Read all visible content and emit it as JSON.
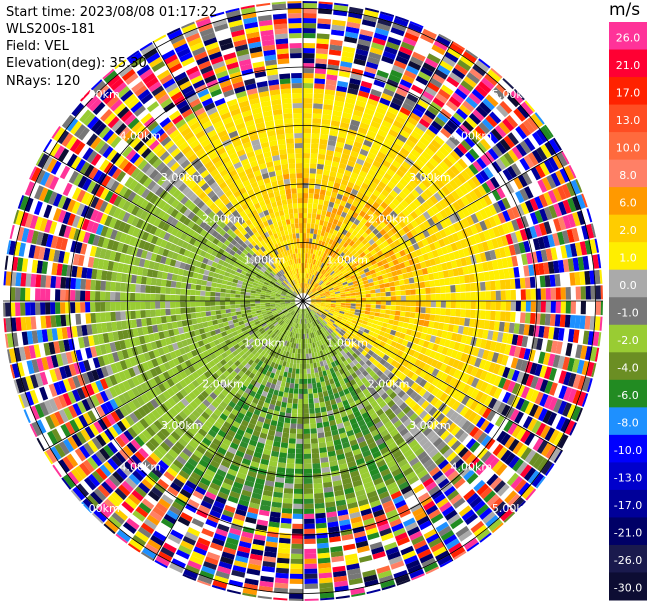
{
  "header": {
    "start_time": "Start time: 2023/08/08 01:17:22",
    "instrument": "WLS200s-181",
    "field": "Field: VEL",
    "elevation": "Elevation(deg): 35.30",
    "nrays": "NRays: 120"
  },
  "chart_data": {
    "type": "heatmap",
    "projection": "polar-ppi",
    "field": "VEL",
    "units": "m/s",
    "nrays": 120,
    "elevation_deg": 35.3,
    "range_rings_km": [
      1.0,
      2.0,
      3.0,
      4.0,
      5.0
    ],
    "range_ring_labels": [
      "1.00km",
      "2.00km",
      "3.00km",
      "4.00km",
      "5.00km"
    ],
    "azimuth_lines_deg": [
      0,
      30,
      60,
      90,
      120,
      150,
      180,
      210,
      240,
      270,
      300,
      330
    ],
    "colorbar": {
      "title": "m/s",
      "ticks": [
        "26.0",
        "21.0",
        "17.0",
        "13.0",
        "10.0",
        "8.0",
        "6.0",
        "2.0",
        "1.0",
        "0.0",
        "-1.0",
        "-2.0",
        "-4.0",
        "-6.0",
        "-8.0",
        "-10.0",
        "-13.0",
        "-17.0",
        "-21.0",
        "-26.0",
        "-30.0"
      ],
      "colors": [
        "#ff3399",
        "#ff0033",
        "#ff2200",
        "#ff4d22",
        "#ff6a3d",
        "#ff8066",
        "#ff9900",
        "#ffcc00",
        "#ffee00",
        "#aaaaaa",
        "#777777",
        "#99cc33",
        "#6b8e23",
        "#228b22",
        "#1e90ff",
        "#0000ff",
        "#0000cc",
        "#000099",
        "#000066",
        "#1a1a4d",
        "#0d0d33"
      ]
    },
    "notes_visible": "Velocity field: positive (yellow/orange) in north-east half, negative (green) in south-west half, noisy multicolor speckle beyond ~3.5 km."
  }
}
